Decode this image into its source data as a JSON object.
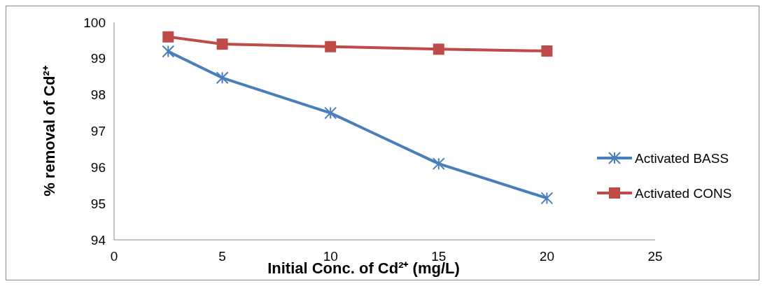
{
  "chart_data": {
    "type": "line",
    "xlabel": "Initial Conc. of Cd²⁺ (mg/L)",
    "ylabel": "% removal of Cd²⁺",
    "x": [
      2.5,
      5,
      10,
      15,
      20
    ],
    "series": [
      {
        "name": "Activated BASS",
        "color": "#4a7ebb",
        "marker": "cross",
        "values": [
          99.2,
          98.47,
          97.5,
          96.1,
          95.15
        ]
      },
      {
        "name": "Activated CONS",
        "color": "#be4b48",
        "marker": "square",
        "values": [
          99.6,
          99.4,
          99.33,
          99.26,
          99.21
        ]
      }
    ],
    "xlim": [
      0,
      25
    ],
    "xticks": [
      0,
      5,
      10,
      15,
      20,
      25
    ],
    "ylim": [
      94,
      100
    ],
    "yticks": [
      94,
      95,
      96,
      97,
      98,
      99,
      100
    ],
    "grid": false,
    "legend": "right",
    "line_style": "solid"
  }
}
